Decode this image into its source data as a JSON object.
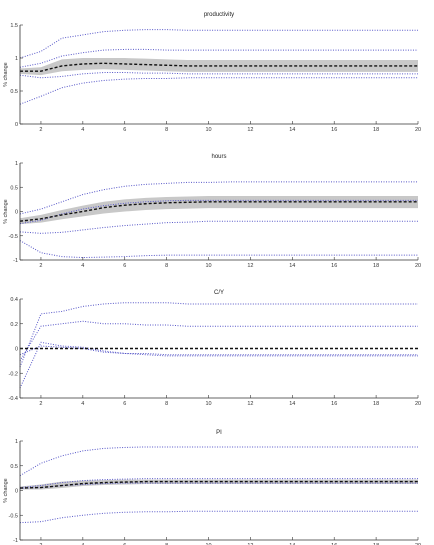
{
  "chart_data": [
    {
      "type": "line",
      "title": "productivity",
      "ylabel": "% change",
      "xlim": [
        1,
        20
      ],
      "ylim": [
        0,
        1.5
      ],
      "xticks": [
        2,
        4,
        6,
        8,
        10,
        12,
        14,
        16,
        18,
        20
      ],
      "yticks": [
        0,
        0.5,
        1,
        1.5
      ],
      "ytick_labels": [
        "0",
        "0.5",
        "1",
        "1.5"
      ],
      "x": [
        1,
        2,
        3,
        4,
        5,
        6,
        7,
        8,
        9,
        10,
        11,
        12,
        13,
        14,
        15,
        16,
        17,
        18,
        19,
        20
      ],
      "series": [
        {
          "role": "median",
          "values": [
            0.8,
            0.8,
            0.88,
            0.91,
            0.92,
            0.91,
            0.9,
            0.89,
            0.88,
            0.88,
            0.88,
            0.88,
            0.88,
            0.88,
            0.88,
            0.88,
            0.88,
            0.88,
            0.88,
            0.88
          ]
        },
        {
          "role": "band_upper",
          "values": [
            0.84,
            0.86,
            0.98,
            1.0,
            1.0,
            1.0,
            0.99,
            0.98,
            0.97,
            0.97,
            0.97,
            0.97,
            0.97,
            0.97,
            0.97,
            0.97,
            0.97,
            0.97,
            0.97,
            0.97
          ]
        },
        {
          "role": "band_lower",
          "values": [
            0.76,
            0.74,
            0.8,
            0.82,
            0.83,
            0.82,
            0.81,
            0.8,
            0.79,
            0.79,
            0.79,
            0.79,
            0.79,
            0.79,
            0.79,
            0.79,
            0.79,
            0.79,
            0.79,
            0.79
          ]
        },
        {
          "role": "outer_upper",
          "values": [
            1.0,
            1.1,
            1.3,
            1.35,
            1.4,
            1.42,
            1.43,
            1.43,
            1.42,
            1.42,
            1.42,
            1.42,
            1.42,
            1.42,
            1.42,
            1.42,
            1.42,
            1.42,
            1.42,
            1.42
          ]
        },
        {
          "role": "inner_upper",
          "values": [
            0.86,
            0.92,
            1.03,
            1.08,
            1.12,
            1.13,
            1.13,
            1.12,
            1.12,
            1.12,
            1.12,
            1.12,
            1.12,
            1.12,
            1.12,
            1.12,
            1.12,
            1.12,
            1.12,
            1.12
          ]
        },
        {
          "role": "inner_lower",
          "values": [
            0.74,
            0.7,
            0.72,
            0.76,
            0.78,
            0.78,
            0.77,
            0.77,
            0.76,
            0.76,
            0.76,
            0.76,
            0.76,
            0.76,
            0.76,
            0.76,
            0.76,
            0.76,
            0.76,
            0.76
          ]
        },
        {
          "role": "outer_lower",
          "values": [
            0.3,
            0.42,
            0.55,
            0.62,
            0.66,
            0.68,
            0.69,
            0.69,
            0.7,
            0.7,
            0.7,
            0.7,
            0.7,
            0.7,
            0.7,
            0.7,
            0.7,
            0.7,
            0.7,
            0.7
          ]
        }
      ]
    },
    {
      "type": "line",
      "title": "hours",
      "ylabel": "% change",
      "xlim": [
        1,
        20
      ],
      "ylim": [
        -1,
        1
      ],
      "xticks": [
        2,
        4,
        6,
        8,
        10,
        12,
        14,
        16,
        18,
        20
      ],
      "yticks": [
        -1,
        -0.5,
        0,
        0.5,
        1
      ],
      "ytick_labels": [
        "-1",
        "-0.5",
        "0",
        "0.5",
        "1"
      ],
      "x": [
        1,
        2,
        3,
        4,
        5,
        6,
        7,
        8,
        9,
        10,
        11,
        12,
        13,
        14,
        15,
        16,
        17,
        18,
        19,
        20
      ],
      "series": [
        {
          "role": "median",
          "values": [
            -0.2,
            -0.15,
            -0.07,
            0.0,
            0.08,
            0.13,
            0.16,
            0.18,
            0.19,
            0.2,
            0.2,
            0.2,
            0.2,
            0.2,
            0.2,
            0.2,
            0.2,
            0.2,
            0.2,
            0.2
          ]
        },
        {
          "role": "band_upper",
          "values": [
            -0.14,
            -0.07,
            0.03,
            0.12,
            0.2,
            0.25,
            0.28,
            0.3,
            0.31,
            0.32,
            0.32,
            0.32,
            0.32,
            0.32,
            0.32,
            0.32,
            0.32,
            0.32,
            0.32,
            0.32
          ]
        },
        {
          "role": "band_lower",
          "values": [
            -0.26,
            -0.23,
            -0.16,
            -0.1,
            -0.04,
            0.0,
            0.03,
            0.05,
            0.06,
            0.07,
            0.07,
            0.07,
            0.07,
            0.07,
            0.07,
            0.07,
            0.07,
            0.07,
            0.07,
            0.07
          ]
        },
        {
          "role": "outer_upper",
          "values": [
            -0.05,
            0.05,
            0.2,
            0.35,
            0.45,
            0.52,
            0.56,
            0.58,
            0.6,
            0.6,
            0.61,
            0.61,
            0.61,
            0.61,
            0.61,
            0.61,
            0.61,
            0.61,
            0.61,
            0.61
          ]
        },
        {
          "role": "inner_upper",
          "values": [
            -0.25,
            -0.18,
            -0.05,
            0.05,
            0.12,
            0.17,
            0.2,
            0.22,
            0.23,
            0.23,
            0.23,
            0.23,
            0.23,
            0.23,
            0.23,
            0.23,
            0.23,
            0.23,
            0.23,
            0.23
          ]
        },
        {
          "role": "inner_lower",
          "values": [
            -0.42,
            -0.45,
            -0.43,
            -0.38,
            -0.33,
            -0.29,
            -0.26,
            -0.23,
            -0.22,
            -0.2,
            -0.2,
            -0.2,
            -0.2,
            -0.2,
            -0.2,
            -0.2,
            -0.2,
            -0.2,
            -0.2,
            -0.2
          ]
        },
        {
          "role": "outer_lower",
          "values": [
            -0.6,
            -0.85,
            -0.93,
            -0.95,
            -0.94,
            -0.93,
            -0.91,
            -0.9,
            -0.9,
            -0.9,
            -0.9,
            -0.9,
            -0.9,
            -0.9,
            -0.9,
            -0.9,
            -0.9,
            -0.9,
            -0.9,
            -0.9
          ]
        }
      ]
    },
    {
      "type": "line",
      "title": "C/Y",
      "ylabel": "",
      "xlim": [
        1,
        20
      ],
      "ylim": [
        -0.4,
        0.4
      ],
      "xticks": [
        2,
        4,
        6,
        8,
        10,
        12,
        14,
        16,
        18,
        20
      ],
      "yticks": [
        -0.4,
        -0.2,
        0,
        0.2,
        0.4
      ],
      "ytick_labels": [
        "-0.4",
        "-0.2",
        "0",
        "0.2",
        "0.4"
      ],
      "x": [
        1,
        2,
        3,
        4,
        5,
        6,
        7,
        8,
        9,
        10,
        11,
        12,
        13,
        14,
        15,
        16,
        17,
        18,
        19,
        20
      ],
      "series": [
        {
          "role": "median",
          "values": [
            0.0,
            0.0,
            0.0,
            0.0,
            0.0,
            0.0,
            0.0,
            0.0,
            0.0,
            0.0,
            0.0,
            0.0,
            0.0,
            0.0,
            0.0,
            0.0,
            0.0,
            0.0,
            0.0,
            0.0
          ]
        },
        {
          "role": "band_upper",
          "values": [
            0.0,
            0.0,
            0.0,
            0.0,
            0.0,
            0.0,
            0.0,
            0.0,
            0.0,
            0.0,
            0.0,
            0.0,
            0.0,
            0.0,
            0.0,
            0.0,
            0.0,
            0.0,
            0.0,
            0.0
          ]
        },
        {
          "role": "band_lower",
          "values": [
            0.0,
            0.0,
            0.0,
            0.0,
            0.0,
            0.0,
            0.0,
            0.0,
            0.0,
            0.0,
            0.0,
            0.0,
            0.0,
            0.0,
            0.0,
            0.0,
            0.0,
            0.0,
            0.0,
            0.0
          ]
        },
        {
          "role": "outer_upper",
          "values": [
            -0.15,
            0.28,
            0.3,
            0.34,
            0.36,
            0.37,
            0.37,
            0.37,
            0.36,
            0.36,
            0.36,
            0.36,
            0.36,
            0.36,
            0.36,
            0.36,
            0.36,
            0.36,
            0.36,
            0.36
          ]
        },
        {
          "role": "inner_upper",
          "values": [
            -0.1,
            0.18,
            0.2,
            0.22,
            0.2,
            0.2,
            0.19,
            0.19,
            0.18,
            0.18,
            0.18,
            0.18,
            0.18,
            0.18,
            0.18,
            0.18,
            0.18,
            0.18,
            0.18,
            0.18
          ]
        },
        {
          "role": "inner_lower",
          "values": [
            -0.05,
            0.02,
            0.01,
            0.0,
            -0.03,
            -0.04,
            -0.04,
            -0.05,
            -0.05,
            -0.05,
            -0.05,
            -0.05,
            -0.05,
            -0.05,
            -0.05,
            -0.05,
            -0.05,
            -0.05,
            -0.05,
            -0.05
          ]
        },
        {
          "role": "outer_lower",
          "values": [
            -0.32,
            0.05,
            0.02,
            0.01,
            -0.02,
            -0.04,
            -0.05,
            -0.06,
            -0.06,
            -0.06,
            -0.06,
            -0.06,
            -0.06,
            -0.06,
            -0.06,
            -0.06,
            -0.06,
            -0.06,
            -0.06,
            -0.06
          ]
        }
      ]
    },
    {
      "type": "line",
      "title": "PI",
      "ylabel": "% change",
      "xlim": [
        1,
        20
      ],
      "ylim": [
        -1,
        1
      ],
      "xticks": [
        2,
        4,
        6,
        8,
        10,
        12,
        14,
        16,
        18,
        20
      ],
      "yticks": [
        -1,
        -0.5,
        0,
        0.5,
        1
      ],
      "ytick_labels": [
        "-1",
        "-0.5",
        "0",
        "0.5",
        "1"
      ],
      "x": [
        1,
        2,
        3,
        4,
        5,
        6,
        7,
        8,
        9,
        10,
        11,
        12,
        13,
        14,
        15,
        16,
        17,
        18,
        19,
        20
      ],
      "series": [
        {
          "role": "median",
          "values": [
            0.05,
            0.06,
            0.1,
            0.14,
            0.16,
            0.17,
            0.18,
            0.18,
            0.18,
            0.18,
            0.18,
            0.18,
            0.18,
            0.18,
            0.18,
            0.18,
            0.18,
            0.18,
            0.18,
            0.18
          ]
        },
        {
          "role": "band_upper",
          "values": [
            0.08,
            0.12,
            0.18,
            0.2,
            0.21,
            0.22,
            0.22,
            0.22,
            0.22,
            0.22,
            0.22,
            0.22,
            0.22,
            0.22,
            0.22,
            0.22,
            0.22,
            0.22,
            0.22,
            0.22
          ]
        },
        {
          "role": "band_lower",
          "values": [
            0.02,
            0.02,
            0.05,
            0.09,
            0.11,
            0.12,
            0.13,
            0.13,
            0.13,
            0.13,
            0.13,
            0.13,
            0.13,
            0.13,
            0.13,
            0.13,
            0.13,
            0.13,
            0.13,
            0.13
          ]
        },
        {
          "role": "outer_upper",
          "values": [
            0.3,
            0.55,
            0.7,
            0.8,
            0.85,
            0.87,
            0.88,
            0.88,
            0.88,
            0.88,
            0.88,
            0.88,
            0.88,
            0.88,
            0.88,
            0.88,
            0.88,
            0.88,
            0.88,
            0.88
          ]
        },
        {
          "role": "inner_upper",
          "values": [
            0.06,
            0.1,
            0.16,
            0.2,
            0.22,
            0.23,
            0.24,
            0.24,
            0.24,
            0.24,
            0.24,
            0.24,
            0.24,
            0.24,
            0.24,
            0.24,
            0.24,
            0.24,
            0.24,
            0.24
          ]
        },
        {
          "role": "inner_lower",
          "values": [
            0.04,
            0.06,
            0.1,
            0.12,
            0.14,
            0.15,
            0.15,
            0.15,
            0.15,
            0.15,
            0.15,
            0.15,
            0.15,
            0.15,
            0.15,
            0.15,
            0.15,
            0.15,
            0.15,
            0.15
          ]
        },
        {
          "role": "outer_lower",
          "values": [
            -0.65,
            -0.63,
            -0.55,
            -0.5,
            -0.46,
            -0.44,
            -0.43,
            -0.43,
            -0.42,
            -0.42,
            -0.42,
            -0.42,
            -0.42,
            -0.42,
            -0.42,
            -0.42,
            -0.42,
            -0.42,
            -0.42,
            -0.42
          ]
        }
      ]
    }
  ],
  "colors": {
    "median": "#111111",
    "band_fill": "#c8c8c8",
    "bounds": "#5656c8",
    "axis": "#333333",
    "background": "#ffffff"
  }
}
